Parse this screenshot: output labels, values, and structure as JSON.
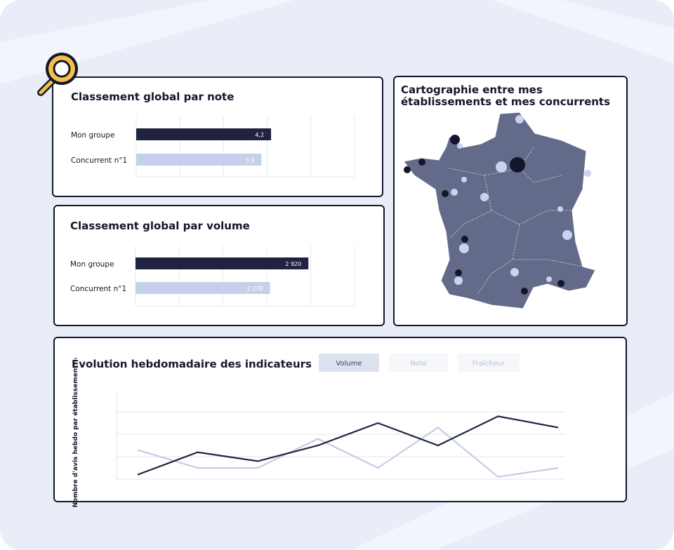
{
  "map": {
    "title": "Cartographie entre mes établissements et mes concurrents"
  },
  "tabs": [
    "Volume",
    "Note",
    "Fraîcheur"
  ],
  "chart_data": [
    {
      "type": "hbar",
      "title": "Classement global par note",
      "categories": [
        "Mon groupe",
        "Concurrent n°1"
      ],
      "values": [
        4.2,
        3.9
      ],
      "value_labels": [
        "4,2",
        "3,9"
      ],
      "colors": [
        "#1f2340",
        "#c5d1ea"
      ],
      "xlim": [
        0,
        6.8
      ],
      "grid": true
    },
    {
      "type": "hbar",
      "title": "Classement global par volume",
      "categories": [
        "Mon groupe",
        "Concurrent n°1"
      ],
      "values": [
        2920,
        2270
      ],
      "value_labels": [
        "2 920",
        "2 270"
      ],
      "colors": [
        "#1f2340",
        "#c5d1ea"
      ],
      "xlim": [
        0,
        3700
      ],
      "grid": true
    },
    {
      "type": "line",
      "title": "Évolution hebdomadaire des indicateurs",
      "y_label": "Nombre d'avis hebdo par établissement",
      "categories": [
        null,
        null,
        null,
        null,
        null,
        null,
        null,
        null
      ],
      "series": [
        {
          "color": "#c5cde3",
          "values": [
            1.3,
            0.5,
            0.5,
            1.8,
            0.5,
            2.3,
            0.1,
            0.5
          ]
        },
        {
          "color": "#1f2340",
          "values": [
            0.2,
            1.2,
            0.8,
            1.5,
            2.5,
            1.5,
            2.8,
            2.3
          ]
        }
      ],
      "ylim": [
        0,
        3
      ],
      "grid": true
    }
  ]
}
